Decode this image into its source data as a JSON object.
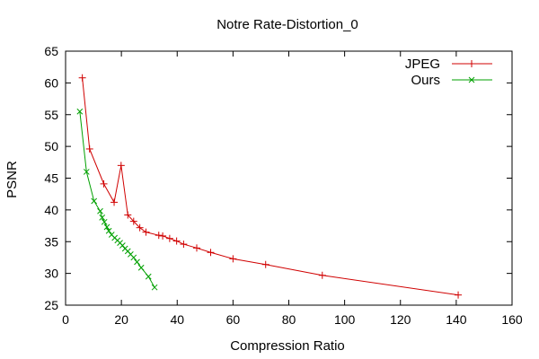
{
  "chart_data": {
    "type": "line",
    "title": "Notre Rate-Distortion_0",
    "xlabel": "Compression Ratio",
    "ylabel": "PSNR",
    "xlim": [
      0,
      160
    ],
    "ylim": [
      25,
      65
    ],
    "xticks": [
      0,
      20,
      40,
      60,
      80,
      100,
      120,
      140,
      160
    ],
    "yticks": [
      25,
      30,
      35,
      40,
      45,
      50,
      55,
      60,
      65
    ],
    "legend_position": "top-right",
    "grid": false,
    "series": [
      {
        "name": "JPEG",
        "color": "#d00000",
        "marker": "plus",
        "x": [
          6.0,
          8.6,
          13.7,
          17.4,
          19.9,
          22.3,
          24.4,
          26.6,
          28.8,
          33.4,
          34.8,
          37.3,
          39.8,
          42.3,
          47.0,
          52.0,
          60.0,
          71.7,
          92.0,
          140.7
        ],
        "y": [
          60.8,
          49.6,
          44.1,
          41.2,
          47.0,
          39.2,
          38.2,
          37.2,
          36.5,
          36.0,
          35.9,
          35.5,
          35.1,
          34.6,
          34.0,
          33.3,
          32.3,
          31.4,
          29.7,
          26.6
        ]
      },
      {
        "name": "Ours",
        "color": "#00a000",
        "marker": "cross",
        "x": [
          5.1,
          7.5,
          10.2,
          12.4,
          13.1,
          13.9,
          14.8,
          15.5,
          16.5,
          17.6,
          18.6,
          19.5,
          20.4,
          21.3,
          22.3,
          23.3,
          24.4,
          25.6,
          27.1,
          29.7,
          31.9
        ],
        "y": [
          55.5,
          46.0,
          41.4,
          39.8,
          38.8,
          38.1,
          37.3,
          36.7,
          36.1,
          35.6,
          35.2,
          34.8,
          34.4,
          33.9,
          33.5,
          33.0,
          32.5,
          31.8,
          30.9,
          29.5,
          27.8
        ]
      }
    ]
  }
}
